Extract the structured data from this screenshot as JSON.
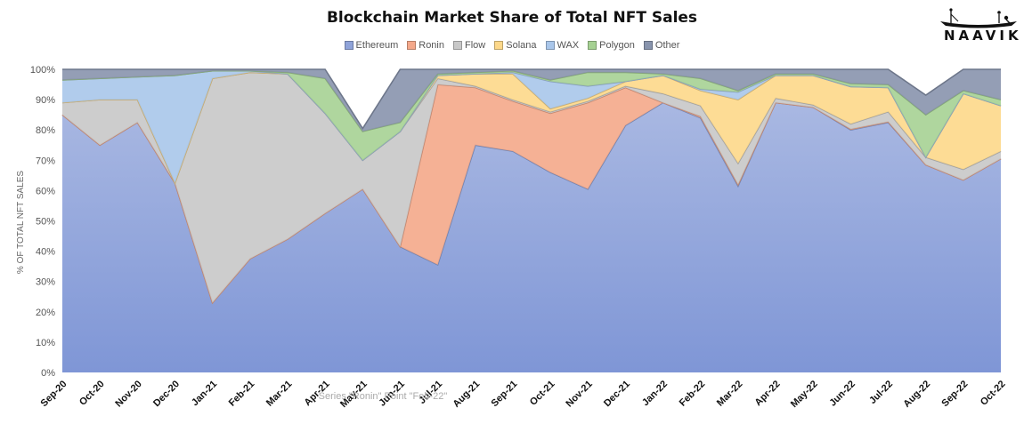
{
  "chart_data": {
    "type": "area",
    "stacked": true,
    "percent": true,
    "title": "Blockchain Market Share of Total NFT Sales",
    "ylabel": "% OF TOTAL NFT SALES",
    "xlabel": "",
    "ylim": [
      0,
      100
    ],
    "yticks": [
      "0%",
      "10%",
      "20%",
      "30%",
      "40%",
      "50%",
      "60%",
      "70%",
      "80%",
      "90%",
      "100%"
    ],
    "legend_position": "top",
    "categories": [
      "Sep-20",
      "Oct-20",
      "Nov-20",
      "Dec-20",
      "Jan-21",
      "Feb-21",
      "Mar-21",
      "Apr-21",
      "May-21",
      "Jun-21",
      "Jul-21",
      "Aug-21",
      "Sep-21",
      "Oct-21",
      "Nov-21",
      "Dec-21",
      "Jan-22",
      "Feb-22",
      "Mar-22",
      "Apr-22",
      "May-22",
      "Jun-22",
      "Jul-22",
      "Aug-22",
      "Sep-22",
      "Oct-22"
    ],
    "series": [
      {
        "name": "Ethereum",
        "color": "#8fa3d9",
        "values": [
          85,
          75,
          82.5,
          62.5,
          23,
          37.5,
          44,
          52.5,
          60.5,
          41.5,
          35.5,
          75,
          73,
          66,
          60.5,
          81.5,
          89,
          84,
          61.5,
          89,
          87.5,
          80,
          82.5,
          68.5,
          63.5,
          70.5
        ]
      },
      {
        "name": "Ronin",
        "color": "#f4a88a",
        "values": [
          0,
          0,
          0,
          0,
          0,
          0,
          0,
          0,
          0,
          0,
          59.5,
          19,
          16.5,
          19.5,
          28.5,
          12.5,
          0,
          0.5,
          0.5,
          0,
          0,
          0.3,
          0.2,
          0,
          0,
          0
        ]
      },
      {
        "name": "Flow",
        "color": "#c8c8c8",
        "values": [
          4,
          15,
          7.5,
          0,
          74,
          61.5,
          54.5,
          33,
          9.5,
          38,
          2,
          0.5,
          0.5,
          0.5,
          0.5,
          0.5,
          3,
          3.5,
          7,
          1.5,
          0.8,
          1.7,
          3.3,
          2.5,
          3.5,
          2.5
        ]
      },
      {
        "name": "Solana",
        "color": "#fdd88a",
        "values": [
          0,
          0,
          0,
          0,
          0,
          0,
          0,
          0,
          0,
          0,
          1,
          4,
          8.5,
          1,
          1,
          1.5,
          6,
          5,
          21,
          7.5,
          9.7,
          12.3,
          8,
          0,
          25,
          15
        ]
      },
      {
        "name": "WAX",
        "color": "#a9c6ea",
        "values": [
          7.5,
          7,
          7.5,
          35.5,
          2.5,
          0.5,
          0,
          0,
          0,
          0,
          0,
          0,
          0.5,
          9,
          4,
          0,
          0,
          0.5,
          2.5,
          0,
          0,
          0,
          0,
          0,
          0,
          0
        ]
      },
      {
        "name": "Polygon",
        "color": "#a6d193",
        "values": [
          0,
          0,
          0,
          0,
          0,
          0,
          0.5,
          11.5,
          9.5,
          3,
          0.5,
          0.5,
          0.5,
          0.5,
          4.5,
          3,
          0.5,
          3.5,
          0.5,
          0.5,
          0.5,
          1,
          1,
          14,
          1,
          2
        ]
      },
      {
        "name": "Other",
        "color": "#8894ad",
        "values": [
          3.5,
          3,
          2.5,
          2,
          0.5,
          0.5,
          1,
          3,
          1,
          19.5,
          1.5,
          1,
          0.5,
          3.5,
          1,
          1,
          1.5,
          3,
          7,
          1.5,
          1.5,
          4.7,
          5,
          6.5,
          7,
          10
        ]
      }
    ],
    "annotations": [
      "Series \"Ronin\" Point \"Feb-22\""
    ]
  },
  "brand": {
    "name": "NAAVIK"
  }
}
